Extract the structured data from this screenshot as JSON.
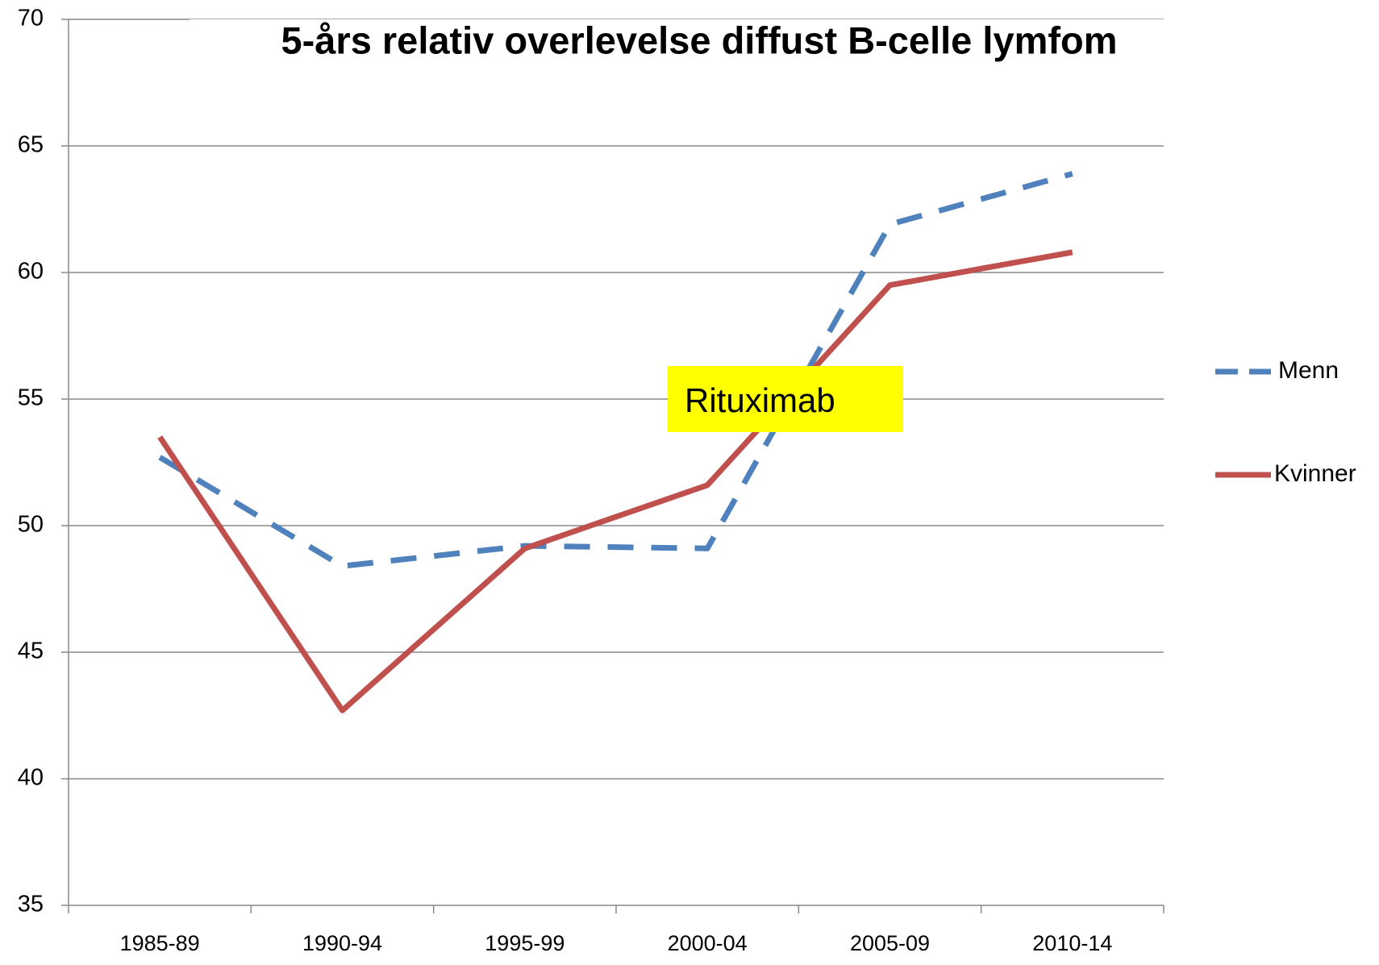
{
  "chart_data": {
    "type": "line",
    "title": "5-års relativ overlevelse diffust B-celle lymfom",
    "annotation": "Rituximab",
    "categories": [
      "1985-89",
      "1990-94",
      "1995-99",
      "2000-04",
      "2005-09",
      "2010-14"
    ],
    "series": [
      {
        "name": "Menn",
        "color": "#4f81bd",
        "dashed": true,
        "values": [
          52.7,
          48.4,
          49.2,
          49.1,
          61.9,
          63.9
        ]
      },
      {
        "name": "Kvinner",
        "color": "#c0504d",
        "dashed": false,
        "values": [
          53.5,
          42.7,
          49.1,
          51.6,
          59.5,
          60.8
        ]
      }
    ],
    "ylim": [
      35,
      70
    ],
    "yticks": [
      35,
      40,
      45,
      50,
      55,
      60,
      65,
      70
    ],
    "grid": true,
    "legend": "right"
  }
}
